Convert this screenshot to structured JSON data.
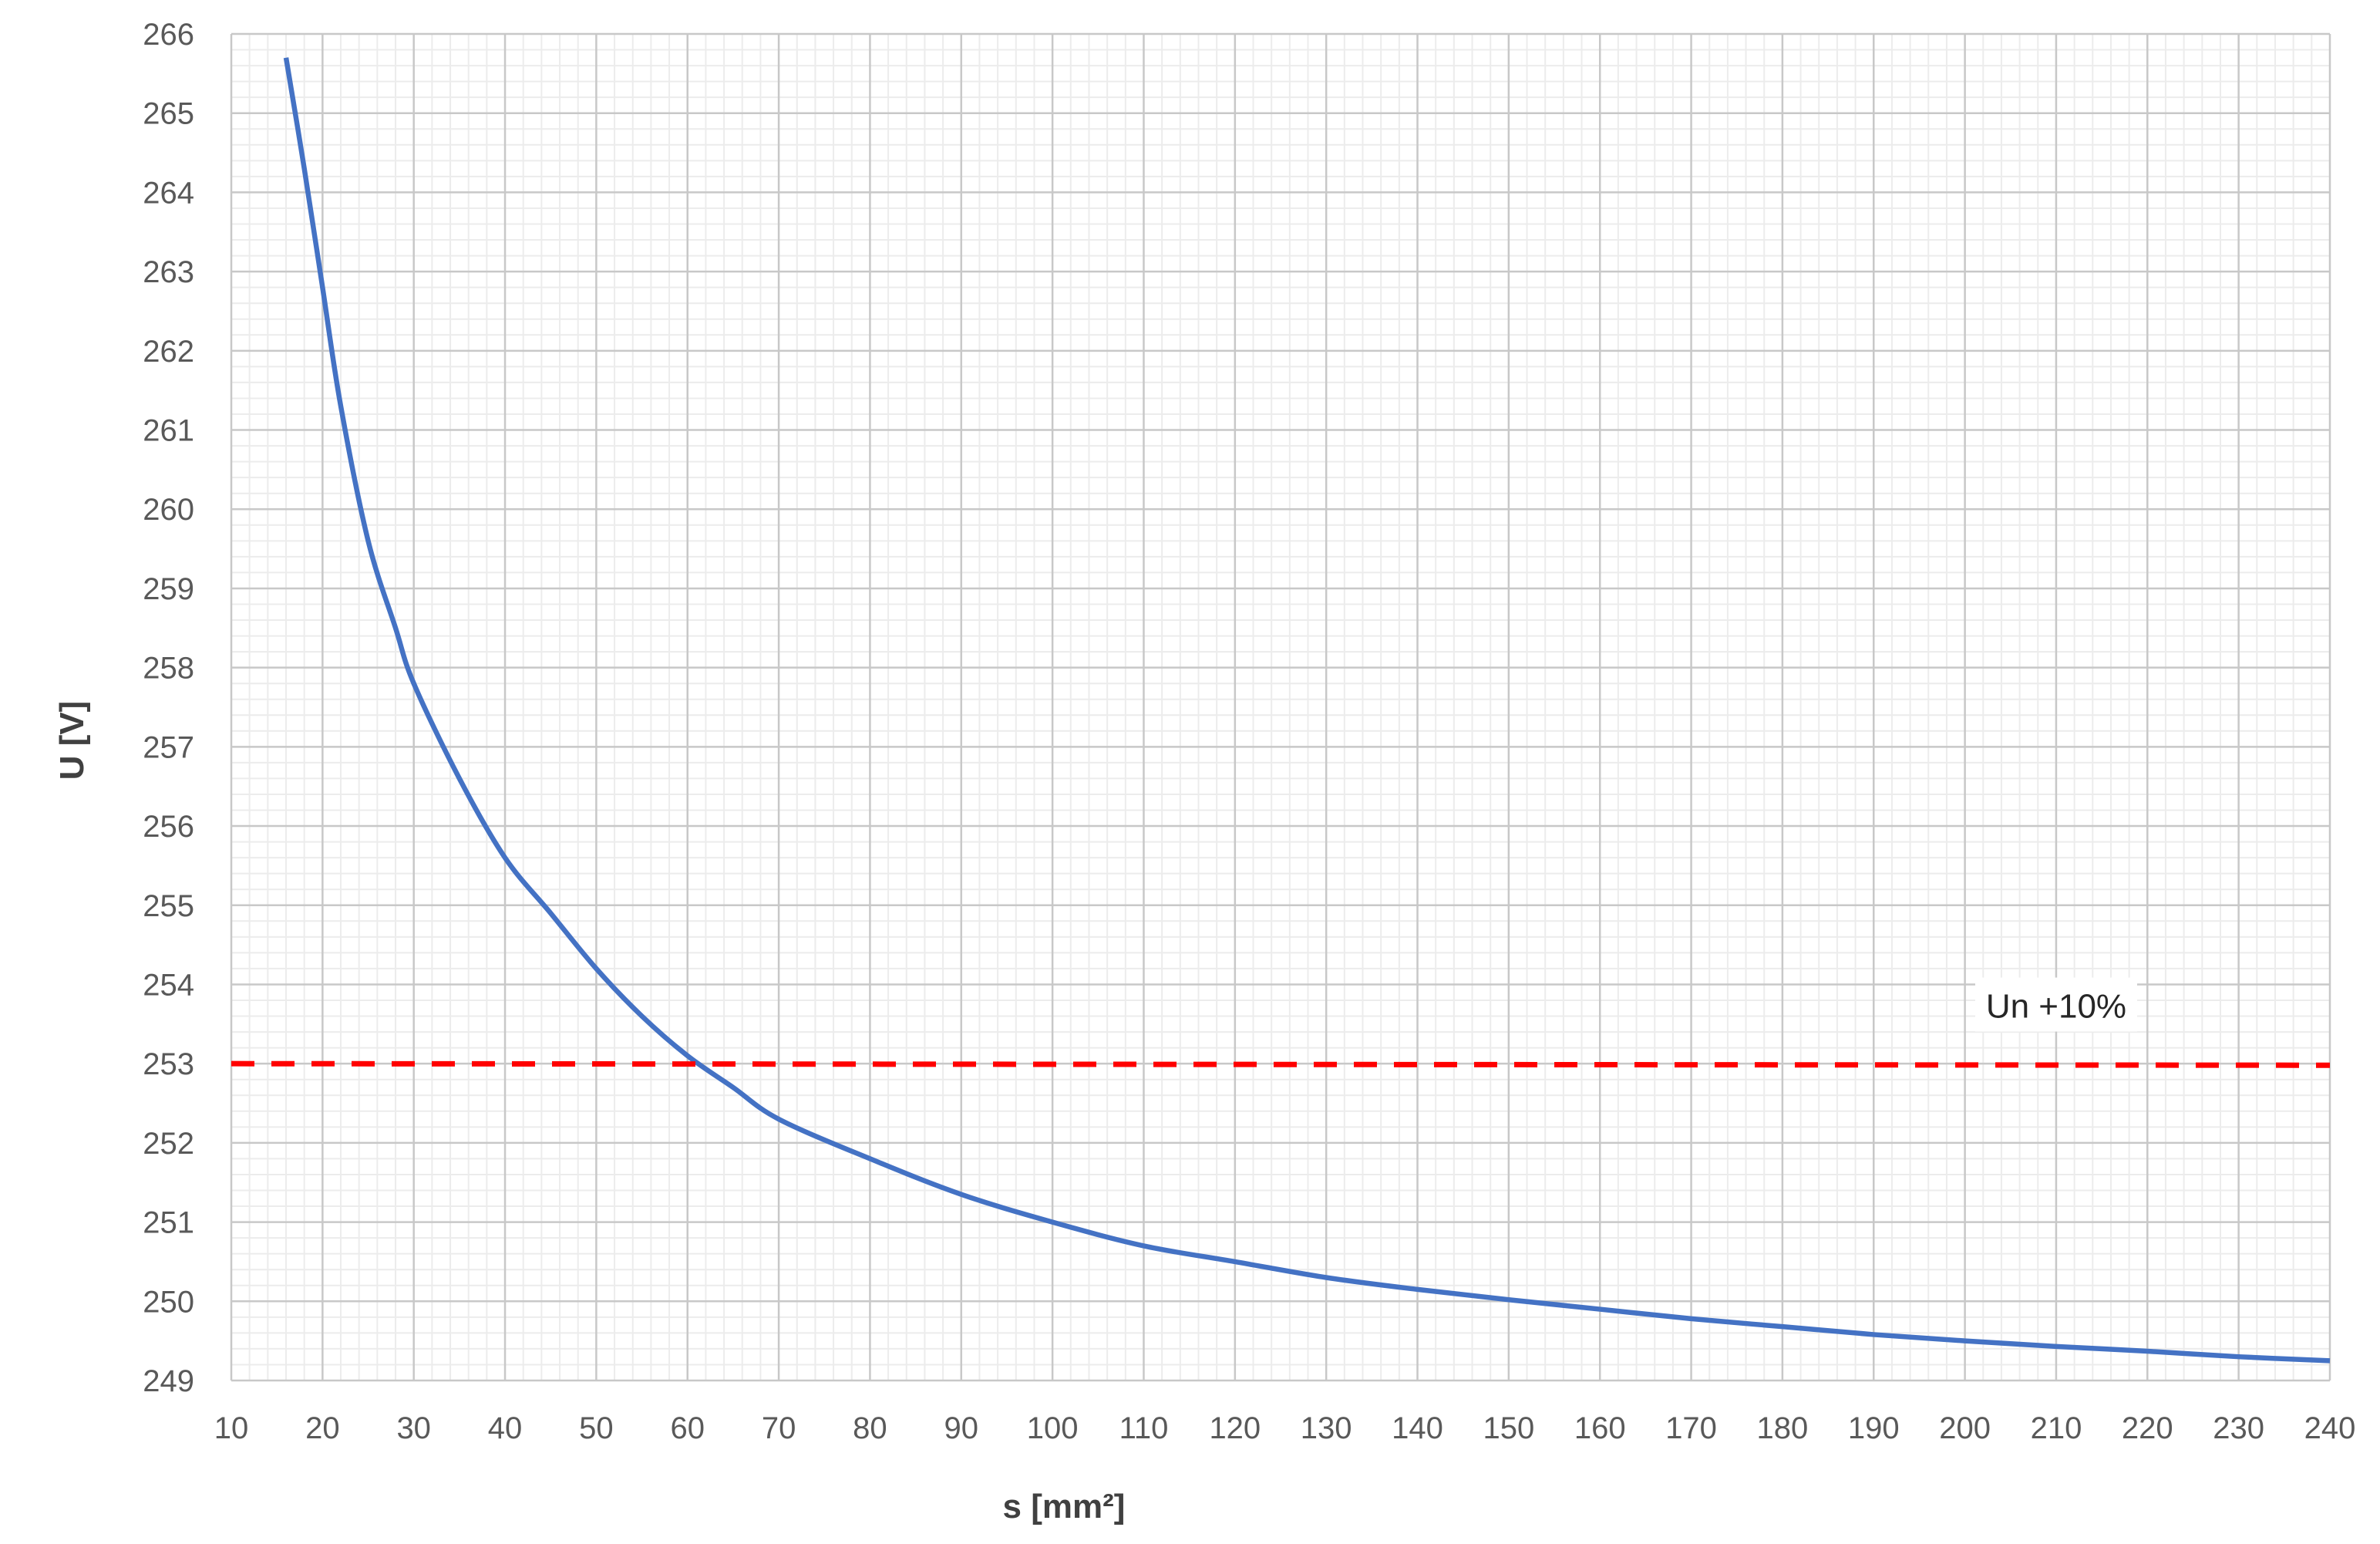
{
  "chart_data": {
    "type": "line",
    "title": "",
    "xlabel": "s [mm²]",
    "ylabel": "U [V]",
    "xlim": [
      10,
      240
    ],
    "ylim": [
      249,
      266
    ],
    "x_ticks": [
      10,
      20,
      30,
      40,
      50,
      60,
      70,
      80,
      90,
      100,
      110,
      120,
      130,
      140,
      150,
      160,
      170,
      180,
      190,
      200,
      210,
      220,
      230,
      240
    ],
    "y_ticks": [
      249,
      250,
      251,
      252,
      253,
      254,
      255,
      256,
      257,
      258,
      259,
      260,
      261,
      262,
      263,
      264,
      265,
      266
    ],
    "grid": true,
    "minor_grid": true,
    "legend": "none",
    "series": [
      {
        "color": "#4472C4",
        "style": "solid",
        "x": [
          16,
          18,
          20,
          22,
          25,
          28,
          30,
          35,
          40,
          45,
          50,
          55,
          60,
          65,
          70,
          80,
          90,
          100,
          110,
          120,
          130,
          140,
          150,
          160,
          170,
          180,
          190,
          200,
          210,
          220,
          230,
          240
        ],
        "y": [
          265.7,
          264.3,
          262.8,
          261.3,
          259.6,
          258.5,
          257.8,
          256.6,
          255.6,
          254.9,
          254.2,
          253.6,
          253.1,
          252.7,
          252.3,
          251.8,
          251.35,
          251.0,
          250.7,
          250.5,
          250.3,
          250.15,
          250.02,
          249.9,
          249.78,
          249.68,
          249.58,
          249.5,
          249.43,
          249.37,
          249.3,
          249.25
        ]
      },
      {
        "color": "#FF0000",
        "style": "dashed",
        "x": [
          10,
          240
        ],
        "y": [
          253.0,
          252.98
        ]
      }
    ],
    "annotations": [
      {
        "text": "Un +10%",
        "x": 210,
        "y": 253.6
      }
    ]
  }
}
